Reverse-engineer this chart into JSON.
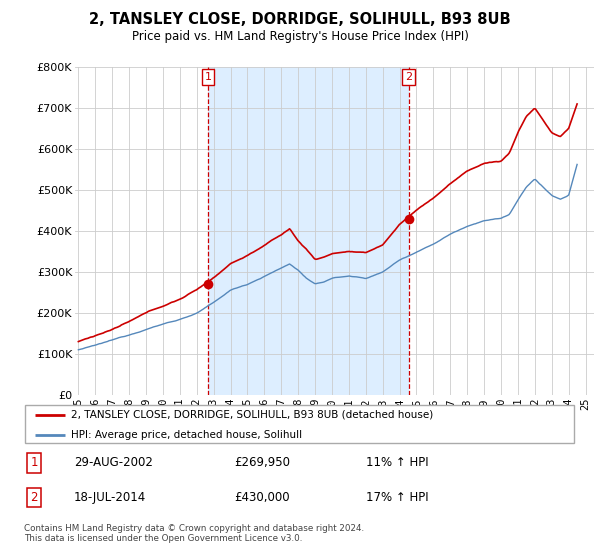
{
  "title": "2, TANSLEY CLOSE, DORRIDGE, SOLIHULL, B93 8UB",
  "subtitle": "Price paid vs. HM Land Registry's House Price Index (HPI)",
  "legend_line1": "2, TANSLEY CLOSE, DORRIDGE, SOLIHULL, B93 8UB (detached house)",
  "legend_line2": "HPI: Average price, detached house, Solihull",
  "table_rows": [
    {
      "num": "1",
      "date": "29-AUG-2002",
      "price": "£269,950",
      "hpi": "11% ↑ HPI"
    },
    {
      "num": "2",
      "date": "18-JUL-2014",
      "price": "£430,000",
      "hpi": "17% ↑ HPI"
    }
  ],
  "footnote": "Contains HM Land Registry data © Crown copyright and database right 2024.\nThis data is licensed under the Open Government Licence v3.0.",
  "sale1_year": 2002.66,
  "sale1_price": 269950,
  "sale2_year": 2014.54,
  "sale2_price": 430000,
  "ylim": [
    0,
    800000
  ],
  "xlim_start": 1994.8,
  "xlim_end": 2025.5,
  "red_color": "#cc0000",
  "blue_color": "#5588bb",
  "shade_color": "#ddeeff",
  "vline_color": "#cc0000",
  "grid_color": "#cccccc",
  "background_color": "#ffffff"
}
